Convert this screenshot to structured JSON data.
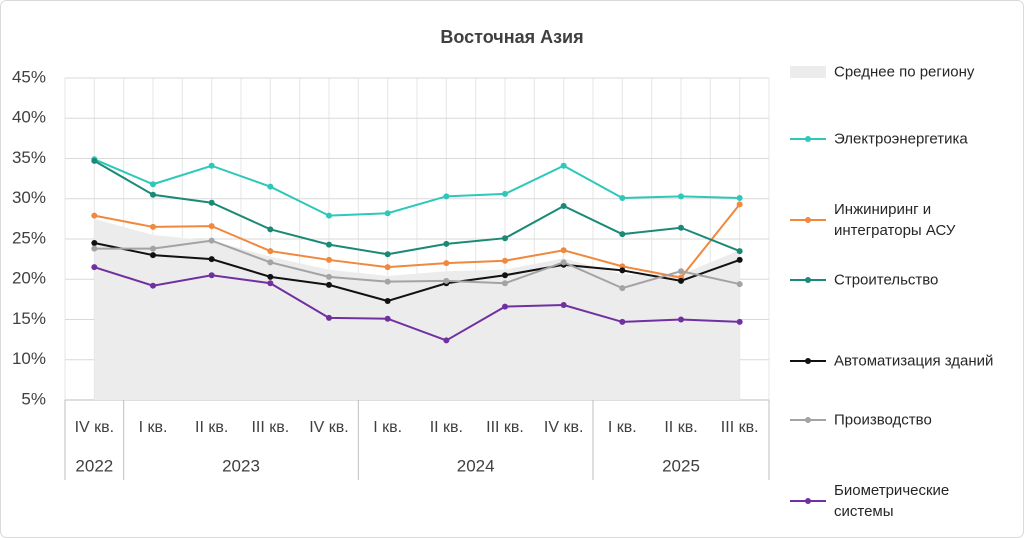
{
  "chart_data": {
    "type": "line",
    "title": "Восточная Азия",
    "categories": [
      "IV кв.",
      "I кв.",
      "II кв.",
      "III кв.",
      "IV кв.",
      "I кв.",
      "II кв.",
      "III кв.",
      "IV кв.",
      "I кв.",
      "II кв.",
      "III кв."
    ],
    "groups": [
      {
        "label": "2022",
        "count": 1
      },
      {
        "label": "2023",
        "count": 4
      },
      {
        "label": "2024",
        "count": 4
      },
      {
        "label": "2025",
        "count": 3
      }
    ],
    "ylim": [
      5,
      45
    ],
    "yticks": [
      {
        "value": 5,
        "label": "5%"
      },
      {
        "value": 10,
        "label": "10%"
      },
      {
        "value": 15,
        "label": "15%"
      },
      {
        "value": 20,
        "label": "20%"
      },
      {
        "value": 25,
        "label": "25%"
      },
      {
        "value": 30,
        "label": "30%"
      },
      {
        "value": 35,
        "label": "35%"
      },
      {
        "value": 40,
        "label": "40%"
      },
      {
        "value": 45,
        "label": "45%"
      }
    ],
    "grid": true,
    "legend": "right",
    "series": [
      {
        "name": "Среднее по региону",
        "type": "area",
        "color": "#ececec",
        "values": [
          27.5,
          25.5,
          24.8,
          22.8,
          21.2,
          20.4,
          21.0,
          21.2,
          22.6,
          20.6,
          20.6,
          23.6
        ]
      },
      {
        "name": "Электроэнергетика",
        "color": "#2ec8bb",
        "values": [
          34.9,
          31.8,
          34.1,
          31.5,
          27.9,
          28.2,
          30.3,
          30.6,
          34.1,
          30.1,
          30.3,
          30.1
        ]
      },
      {
        "name": "Инжиниринг и интеграторы АСУ",
        "color": "#f0883e",
        "values": [
          27.9,
          26.5,
          26.6,
          23.5,
          22.4,
          21.5,
          22.0,
          22.3,
          23.6,
          21.6,
          20.2,
          29.3
        ]
      },
      {
        "name": "Строительство",
        "color": "#1a8a76",
        "values": [
          34.7,
          30.5,
          29.5,
          26.2,
          24.3,
          23.1,
          24.4,
          25.1,
          29.1,
          25.6,
          26.4,
          23.5
        ]
      },
      {
        "name": "Автоматизация зданий",
        "color": "#111111",
        "values": [
          24.5,
          23.0,
          22.5,
          20.3,
          19.3,
          17.3,
          19.5,
          20.5,
          21.8,
          21.1,
          19.8,
          22.4
        ]
      },
      {
        "name": "Производство",
        "color": "#a3a3a3",
        "values": [
          23.8,
          23.8,
          24.8,
          22.1,
          20.3,
          19.7,
          19.8,
          19.5,
          22.1,
          18.9,
          21.0,
          19.4
        ]
      },
      {
        "name": "Биометрические системы",
        "color": "#7030a0",
        "values": [
          21.5,
          19.2,
          20.5,
          19.5,
          15.2,
          15.1,
          12.4,
          16.6,
          16.8,
          14.7,
          15.0,
          14.7
        ]
      }
    ]
  }
}
